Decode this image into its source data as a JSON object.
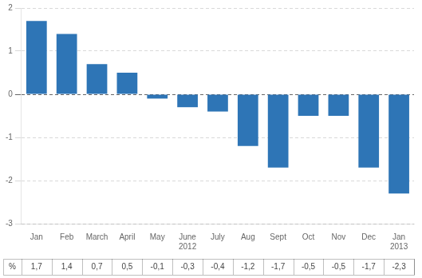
{
  "chart_data": {
    "type": "bar",
    "categories": [
      "Jan",
      "Feb",
      "March",
      "April",
      "May",
      "June",
      "July",
      "Aug",
      "Sept",
      "Oct",
      "Nov",
      "Dec",
      "Jan"
    ],
    "year_labels": [
      null,
      null,
      null,
      null,
      null,
      "2012",
      null,
      null,
      null,
      null,
      null,
      null,
      "2013"
    ],
    "values": [
      1.7,
      1.4,
      0.7,
      0.5,
      -0.1,
      -0.3,
      -0.4,
      -1.2,
      -1.7,
      -0.5,
      -0.5,
      -1.7,
      -2.3
    ],
    "value_labels": [
      "1,7",
      "1,4",
      "0,7",
      "0,5",
      "-0,1",
      "-0,3",
      "-0,4",
      "-1,2",
      "-1,7",
      "-0,5",
      "-0,5",
      "-1,7",
      "-2,3"
    ],
    "value_labels_header": "%",
    "color": "#2E75B6",
    "ylim": [
      -3,
      2
    ],
    "yticks": [
      -3,
      -2,
      -1,
      0,
      1,
      2
    ],
    "grid": true
  }
}
